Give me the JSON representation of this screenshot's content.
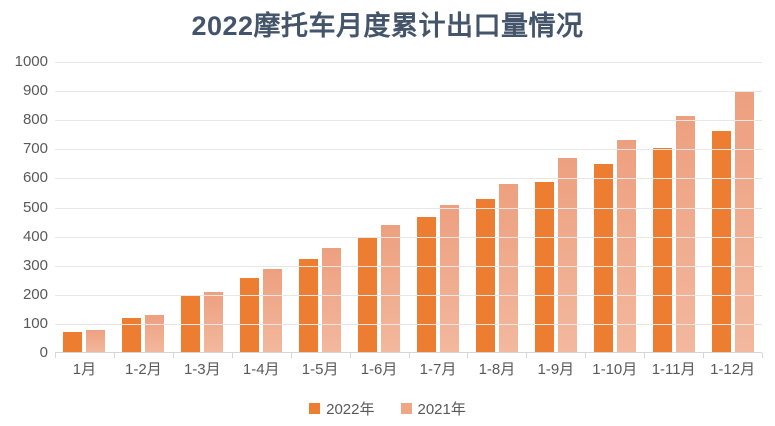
{
  "title": "2022摩托车月度累计出口量情况",
  "colors": {
    "title_text": "#44546A",
    "axis_text": "#595959",
    "gridline": "#E7E7E7",
    "axis_line": "#D6D6D6",
    "background": "#FFFFFF",
    "series_2022": "#ED7D31",
    "series_2021_top": "#EDA07F",
    "series_2021_bottom": "#F3B89E",
    "legend_2021_swatch": "#F0A585"
  },
  "legend": [
    {
      "label": "2022年",
      "swatch": "#ED7D31"
    },
    {
      "label": "2021年",
      "swatch": "#F0A585"
    }
  ],
  "chart_data": {
    "type": "bar",
    "title": "2022摩托车月度累计出口量情况",
    "categories": [
      "1月",
      "1-2月",
      "1-3月",
      "1-4月",
      "1-5月",
      "1-6月",
      "1-7月",
      "1-8月",
      "1-9月",
      "1-10月",
      "1-11月",
      "1-12月"
    ],
    "series": [
      {
        "name": "2022年",
        "values": [
          72,
          122,
          199,
          259,
          322,
          394,
          468,
          529,
          588,
          648,
          704,
          763
        ]
      },
      {
        "name": "2021年",
        "values": [
          80,
          131,
          211,
          288,
          362,
          439,
          510,
          581,
          671,
          733,
          814,
          897
        ]
      }
    ],
    "xlabel": "",
    "ylabel": "",
    "ylim": [
      0,
      1000
    ],
    "ytick_interval": 100,
    "grid": true,
    "legend_position": "bottom"
  }
}
